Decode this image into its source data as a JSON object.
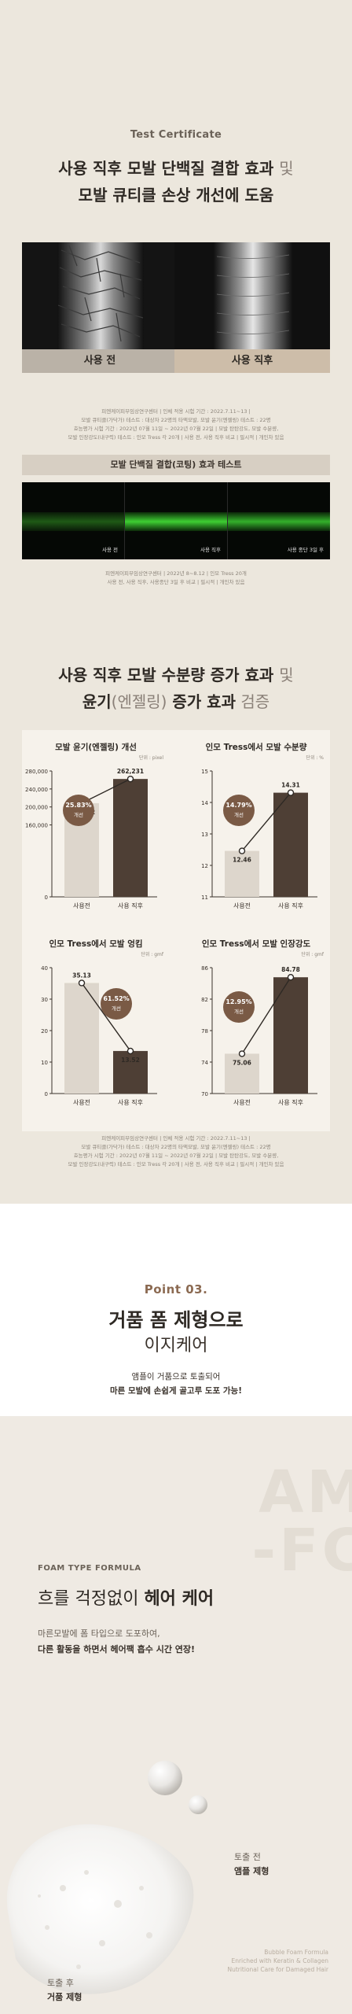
{
  "section1": {
    "kicker": "Test Certificate",
    "headline1_bold": "사용 직후 모발 단백질 결합 효과",
    "headline1_light": "및",
    "headline2_bold": "모발 큐티클 손상 개선에 도움",
    "photo_before": "사용 전",
    "photo_after": "사용 직후",
    "note1": [
      "피엔케이피부임상연구센터 | 인체 적용 시험 기간 : 2022.7.11~13 |",
      "모발 큐티클(가닥가) 테스트 : 대상자 22명의 타액모발, 모발 윤기(엔젤링) 테스트 : 22명",
      "효능평가 시험 기간 : 2022년 07월 11일 ~ 2022년 07월 22일 | 모발 탄탄강도, 모발 수분량,",
      "모발 인장강도(내구력) 테스트 : 인모 Tress 각 20개 | 사용 전, 사용 직후 비교 | 필시적 | 개인차 있음"
    ],
    "coating_bar": "모발 단백질 결합(코팅) 효과 테스트",
    "green_labels": [
      "사용 전",
      "사용 직후",
      "사용 종단 3일 후"
    ],
    "note2": [
      "피엔케이피부임상연구센터 | 2022년 8~8.12 | 인모 Tress 20개",
      "사용 전, 사용 직후, 사용종단 3일 후 비교 | 필시적 | 개인차 있음"
    ],
    "headline3_bold": "사용 직후 모발 수분량 증가 효과",
    "headline3_light": "및",
    "headline4_pre": "윤기",
    "headline4_paren": "(엔젤링)",
    "headline4_bold": " 증가 효과",
    "headline4_light": " 검증",
    "note3": [
      "피엔케이피부임상연구센터 | 인체 적용 시험 기간 : 2022.7.11~13 |",
      "모발 큐티클(가닥가) 테스트 : 대상자 22명의 타액모발, 모발 윤기(엔젤링) 테스트 : 22명",
      "효능평가 시험 기간 : 2022년 07월 11일 ~ 2022년 07월 22일 | 모발 탄탄강도, 모발 수분량,",
      "모발 인장강도(내구력) 테스트 : 인모 Tress 각 20개 | 사용 전, 사용 직후 비교 | 필시적 | 개인차 있음"
    ]
  },
  "chart_data": [
    {
      "type": "bar",
      "title": "모발 윤기(엔젤링) 개선",
      "unit": "단위 : pixel",
      "categories": [
        "사용전",
        "사용 직후"
      ],
      "values": [
        208402,
        262231
      ],
      "value_labels": [
        "208,402",
        "262,231"
      ],
      "ylim": [
        0,
        280000
      ],
      "yticks": [
        0,
        160000,
        200000,
        240000,
        280000
      ],
      "ytick_labels": [
        "0",
        "160,000",
        "200,000",
        "240,000",
        "280,000"
      ],
      "badge_value": "25.83%",
      "badge_text": "개선"
    },
    {
      "type": "bar",
      "title": "인모 Tress에서 모발 수분량",
      "unit": "단위 : %",
      "categories": [
        "사용전",
        "사용 직후"
      ],
      "values": [
        12.46,
        14.31
      ],
      "value_labels": [
        "12.46",
        "14.31"
      ],
      "ylim": [
        11,
        15
      ],
      "yticks": [
        11,
        12,
        13,
        14,
        15
      ],
      "ytick_labels": [
        "11",
        "12",
        "13",
        "14",
        "15"
      ],
      "badge_value": "14.79%",
      "badge_text": "개선"
    },
    {
      "type": "bar",
      "title": "인모 Tress에서 모발 엉킴",
      "unit": "단위 : gmf",
      "categories": [
        "사용전",
        "사용 직후"
      ],
      "values": [
        35.13,
        13.52
      ],
      "value_labels": [
        "35.13",
        "13.52"
      ],
      "ylim": [
        0,
        40
      ],
      "yticks": [
        0,
        10,
        20,
        30,
        40
      ],
      "ytick_labels": [
        "0",
        "10",
        "20",
        "30",
        "40"
      ],
      "badge_value": "61.52%",
      "badge_text": "개선"
    },
    {
      "type": "bar",
      "title": "인모 Tress에서 모발 인장강도",
      "unit": "단위 : gmf",
      "categories": [
        "사용전",
        "사용 직후"
      ],
      "values": [
        75.06,
        84.78
      ],
      "value_labels": [
        "75.06",
        "84.78"
      ],
      "ylim": [
        70,
        86
      ],
      "yticks": [
        70,
        74,
        78,
        82,
        86
      ],
      "ytick_labels": [
        "70",
        "74",
        "78",
        "82",
        "86"
      ],
      "badge_value": "12.95%",
      "badge_text": "개선"
    }
  ],
  "section2": {
    "point": "Point 03.",
    "title1": "거품 폼 제형으로",
    "title2": "이지케어",
    "desc1": "앰플이 거품으로 토출되어",
    "desc2": "마른 모발에 손쉽게 골고루 도포 가능!"
  },
  "section3": {
    "bg_text1": "AM",
    "bg_text2": "-FC",
    "kicker": "FOAM TYPE FORMULA",
    "title_light": "흐를 걱정없이",
    "title_bold": "헤어 케어",
    "desc1": "마른모발에 폼 타입으로 도포하여,",
    "desc2": "다른 활동을 하면서 헤어팩 흡수 시간 연장!",
    "label_before_top": "토출 전",
    "label_before_bottom": "앰플 제형",
    "label_after_top": "토출 후",
    "label_after_bottom": "거품 제형",
    "product_lines": [
      "Bubble Foam Formula",
      "Enriched with Keratin & Collagen",
      "Nutritional Care for Damaged Hair"
    ]
  },
  "colors": {
    "accent": "#7a5a45",
    "bar_dark": "#4e3f35",
    "bar_light": "#ddd6cc",
    "green": "#3ecf33"
  }
}
